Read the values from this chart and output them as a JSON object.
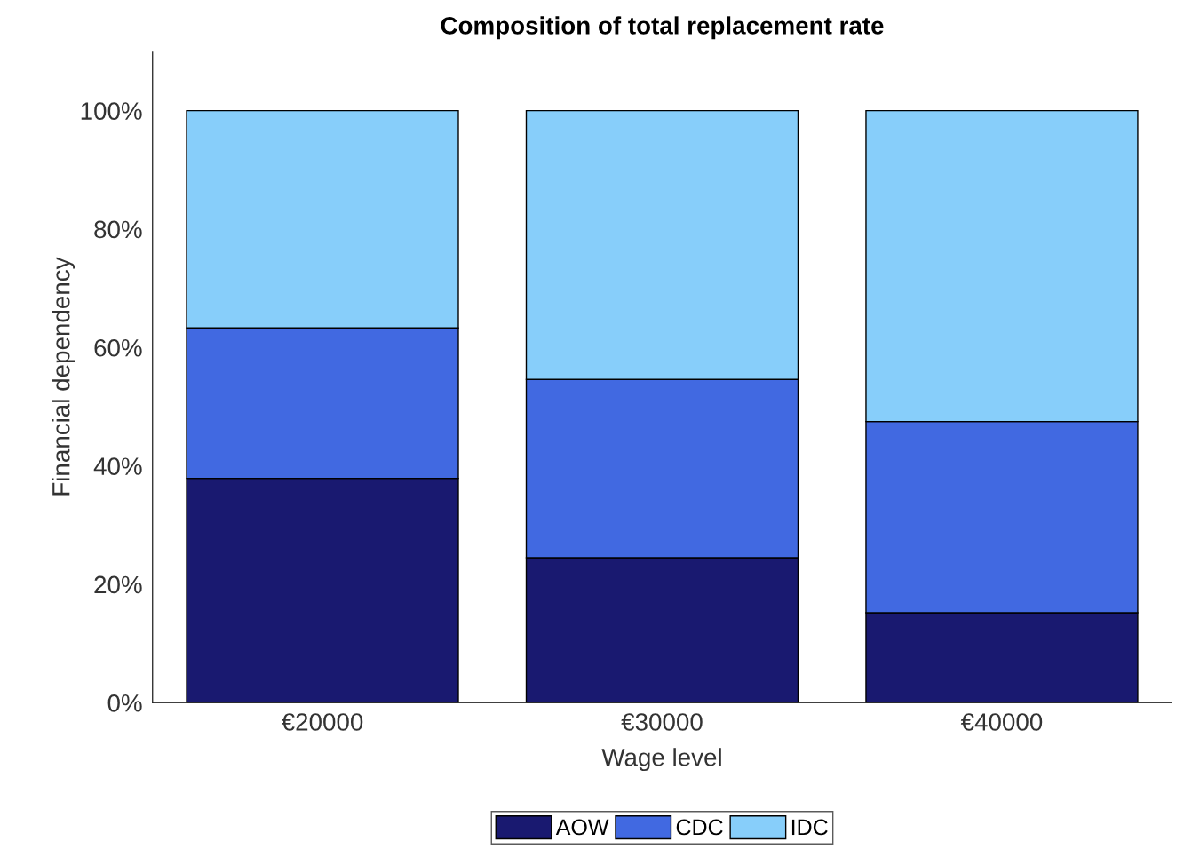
{
  "chart_data": {
    "type": "bar",
    "title": "Composition of total replacement rate",
    "xlabel": "Wage level",
    "ylabel": "Financial dependency",
    "categories": [
      "€20000",
      "€30000",
      "€40000"
    ],
    "stacked": true,
    "series": [
      {
        "name": "AOW",
        "color": "#191970",
        "values": [
          37.9,
          24.5,
          15.2
        ]
      },
      {
        "name": "CDC",
        "color": "#4169e1",
        "values": [
          25.4,
          30.1,
          32.3
        ]
      },
      {
        "name": "IDC",
        "color": "#87cefa",
        "values": [
          36.7,
          45.4,
          52.5
        ]
      }
    ],
    "ylim": [
      0,
      110
    ],
    "yticks": [
      {
        "value": 0,
        "label": "0%"
      },
      {
        "value": 20,
        "label": "20%"
      },
      {
        "value": 40,
        "label": "40%"
      },
      {
        "value": 60,
        "label": "60%"
      },
      {
        "value": 80,
        "label": "80%"
      },
      {
        "value": 100,
        "label": "100%"
      }
    ],
    "grid": false,
    "legend": "bottom"
  }
}
